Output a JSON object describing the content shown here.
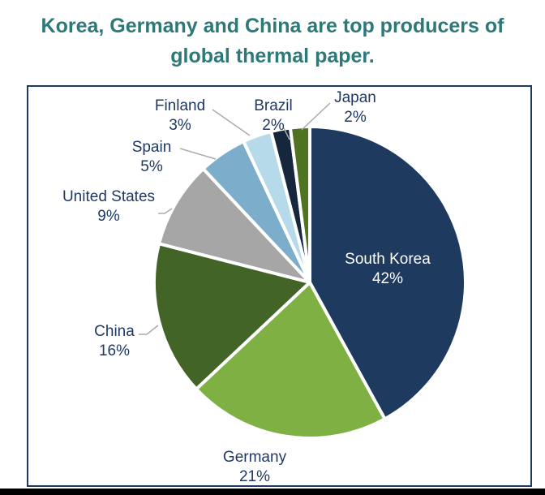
{
  "title": {
    "line1": "Korea, Germany and China are top producers of",
    "line2": "global thermal paper."
  },
  "colors": {
    "title_text": "#2D7878",
    "label_text": "#1F3864",
    "inside_label_text": "#FFFFFF",
    "frame_border": "#1E3A5F",
    "leader_line": "#ABABAB",
    "slice_gap": "#FFFFFF"
  },
  "chart_data": {
    "type": "pie",
    "title": "Korea, Germany and China are top producers of global thermal paper.",
    "start_angle_deg": 0,
    "direction": "clockwise",
    "legend_position": "none",
    "label_style": "callout labels with percent, leader lines for small slices",
    "unit": "%",
    "slices": [
      {
        "label": "South Korea",
        "value": 42,
        "pct_label": "42%",
        "color": "#1E3A5F",
        "label_placement": "inside"
      },
      {
        "label": "Germany",
        "value": 21,
        "pct_label": "21%",
        "color": "#7EB043",
        "label_placement": "outside"
      },
      {
        "label": "China",
        "value": 16,
        "pct_label": "16%",
        "color": "#426427",
        "label_placement": "outside"
      },
      {
        "label": "United States",
        "value": 9,
        "pct_label": "9%",
        "color": "#A6A6A6",
        "label_placement": "outside"
      },
      {
        "label": "Spain",
        "value": 5,
        "pct_label": "5%",
        "color": "#7CAECB",
        "label_placement": "outside"
      },
      {
        "label": "Finland",
        "value": 3,
        "pct_label": "3%",
        "color": "#B7DAEA",
        "label_placement": "outside"
      },
      {
        "label": "Brazil",
        "value": 2,
        "pct_label": "2%",
        "color": "#16263D",
        "label_placement": "outside"
      },
      {
        "label": "Japan",
        "value": 2,
        "pct_label": "2%",
        "color": "#4F7320",
        "label_placement": "outside"
      }
    ]
  }
}
